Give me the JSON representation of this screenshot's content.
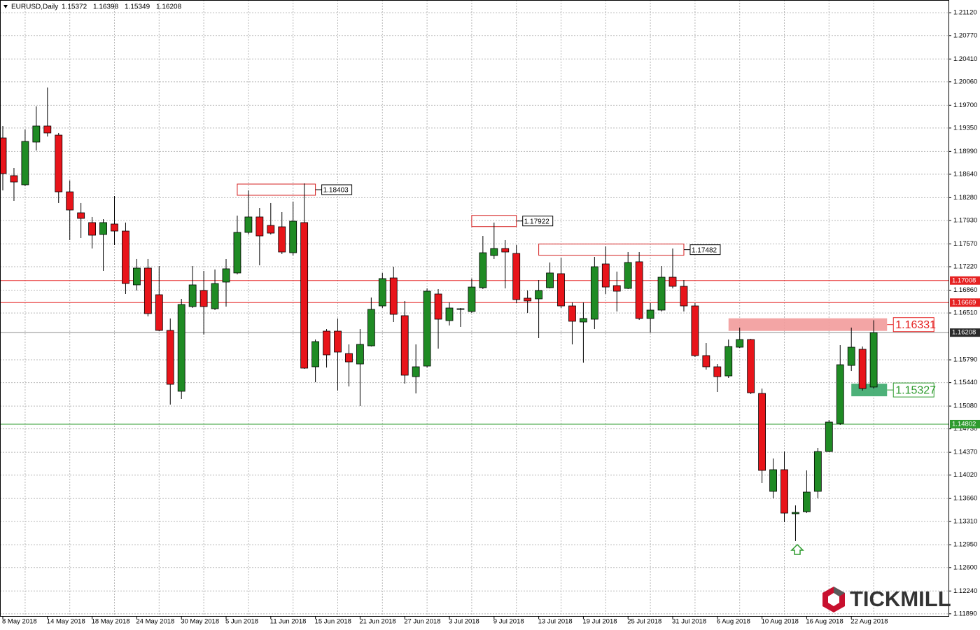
{
  "chart_data": {
    "type": "candlestick",
    "title": "EURUSD,Daily",
    "categories": [
      "8 May 2018",
      null,
      null,
      null,
      "14 May 2018",
      null,
      null,
      null,
      "18 May 2018",
      null,
      null,
      null,
      "24 May 2018",
      null,
      null,
      null,
      "30 May 2018",
      null,
      null,
      null,
      "5 Jun 2018",
      null,
      null,
      null,
      "11 Jun 2018",
      null,
      null,
      null,
      "15 Jun 2018",
      null,
      null,
      null,
      "21 Jun 2018",
      null,
      null,
      null,
      "27 Jun 2018",
      null,
      null,
      null,
      "3 Jul 2018",
      null,
      null,
      null,
      "9 Jul 2018",
      null,
      null,
      null,
      "13 Jul 2018",
      null,
      null,
      null,
      "19 Jul 2018",
      null,
      null,
      null,
      "25 Jul 2018",
      null,
      null,
      null,
      "31 Jul 2018",
      null,
      null,
      null,
      "6 Aug 2018",
      null,
      null,
      null,
      "10 Aug 2018",
      null,
      null,
      null,
      "16 Aug 2018",
      null,
      null,
      null,
      "22 Aug 2018",
      null,
      null
    ],
    "open": [
      1.19198,
      1.18618,
      1.18478,
      1.19134,
      1.19381,
      1.19241,
      1.1837,
      1.18048,
      1.17898,
      1.17715,
      1.17876,
      1.17768,
      1.16941,
      1.17199,
      1.1679,
      1.16242,
      1.15307,
      1.16608,
      1.16855,
      1.16575,
      1.16984,
      1.17124,
      1.17747,
      1.17984,
      1.17854,
      1.17833,
      1.17435,
      1.17898,
      1.15683,
      1.16231,
      1.16231,
      1.15887,
      1.15726,
      1.16005,
      1.16618,
      1.17048,
      1.16468,
      1.15532,
      1.15694,
      1.16801,
      1.16392,
      1.16564,
      1.16532,
      1.16898,
      1.17392,
      1.175,
      1.17424,
      1.16737,
      1.16726,
      1.16898,
      1.17113,
      1.16618,
      1.16371,
      1.16414,
      1.17263,
      1.1693,
      1.16887,
      1.17296,
      1.16425,
      1.16554,
      1.17059,
      1.16919,
      1.16618,
      1.15855,
      1.15683,
      1.15543,
      1.15984,
      1.16102,
      1.15274,
      1.1377,
      1.14103,
      1.13426,
      1.13458,
      1.1377,
      1.14382,
      1.14812,
      1.15704,
      1.15952,
      1.15372
    ],
    "high": [
      1.19381,
      1.18736,
      1.19327,
      1.19682,
      1.19972,
      1.19274,
      1.18543,
      1.18199,
      1.17984,
      1.17951,
      1.18306,
      1.17898,
      1.17339,
      1.17339,
      1.17231,
      1.16425,
      1.16726,
      1.17231,
      1.17156,
      1.17177,
      1.17339,
      1.18005,
      1.18392,
      1.18123,
      1.18199,
      1.18059,
      1.1822,
      1.185,
      1.16102,
      1.16263,
      1.16425,
      1.16027,
      1.16263,
      1.16747,
      1.17124,
      1.1722,
      1.16694,
      1.16027,
      1.16887,
      1.16876,
      1.16672,
      1.16586,
      1.17038,
      1.17693,
      1.17898,
      1.17629,
      1.17553,
      1.16855,
      1.17016,
      1.17285,
      1.1736,
      1.16672,
      1.16672,
      1.17371,
      1.17532,
      1.17145,
      1.17446,
      1.17446,
      1.16661,
      1.17231,
      1.175,
      1.17016,
      1.16661,
      1.16048,
      1.15726,
      1.16102,
      1.16285,
      1.16113,
      1.15349,
      1.14275,
      1.14382,
      1.13555,
      1.14092,
      1.14436,
      1.14866,
      1.16016,
      1.16285,
      1.15995,
      1.16398
    ],
    "low": [
      1.18392,
      1.18231,
      1.18456,
      1.19005,
      1.1922,
      1.18199,
      1.17629,
      1.17661,
      1.175,
      1.17156,
      1.17553,
      1.16801,
      1.16855,
      1.16457,
      1.16231,
      1.15103,
      1.15189,
      1.16586,
      1.16178,
      1.16554,
      1.16608,
      1.17102,
      1.17715,
      1.17242,
      1.17715,
      1.17414,
      1.17392,
      1.15651,
      1.15446,
      1.15672,
      1.15317,
      1.15381,
      1.15081,
      1.15995,
      1.16586,
      1.16371,
      1.15425,
      1.15274,
      1.15672,
      1.15962,
      1.16317,
      1.16296,
      1.16511,
      1.16876,
      1.17339,
      1.16887,
      1.16661,
      1.16511,
      1.16124,
      1.16887,
      1.16586,
      1.16027,
      1.15747,
      1.16263,
      1.16801,
      1.16532,
      1.16876,
      1.16403,
      1.16209,
      1.16532,
      1.16887,
      1.16532,
      1.15833,
      1.1564,
      1.15296,
      1.15511,
      1.15973,
      1.15264,
      1.13899,
      1.13662,
      1.13297,
      1.13007,
      1.13436,
      1.13662,
      1.14372,
      1.14791,
      1.15618,
      1.15317,
      1.15349
    ],
    "close": [
      1.1865,
      1.18521,
      1.19144,
      1.19381,
      1.19274,
      1.1837,
      1.18091,
      1.17962,
      1.17704,
      1.17898,
      1.17768,
      1.16962,
      1.17199,
      1.165,
      1.16242,
      1.15414,
      1.1664,
      1.16941,
      1.16608,
      1.16962,
      1.17188,
      1.17747,
      1.17984,
      1.17693,
      1.17736,
      1.17446,
      1.17919,
      1.15662,
      1.1607,
      1.15866,
      1.15909,
      1.15758,
      1.16027,
      1.16565,
      1.17038,
      1.16489,
      1.15554,
      1.15683,
      1.16844,
      1.16414,
      1.16586,
      1.16575,
      1.16908,
      1.17435,
      1.175,
      1.17446,
      1.16715,
      1.16694,
      1.16855,
      1.17124,
      1.16618,
      1.16382,
      1.16425,
      1.1722,
      1.16908,
      1.16844,
      1.17285,
      1.16425,
      1.16554,
      1.17059,
      1.16919,
      1.16618,
      1.15855,
      1.15683,
      1.15532,
      1.15995,
      1.16102,
      1.15285,
      1.14092,
      1.14103,
      1.13436,
      1.13447,
      1.13759,
      1.14382,
      1.14834,
      1.15715,
      1.15984,
      1.15349,
      1.16208
    ],
    "up_color": "#1f8b24",
    "down_color": "#e8141a",
    "ylim": [
      1.11856,
      1.21316
    ],
    "yticks": [
      {
        "value": 1.2112,
        "label": "1.21120"
      },
      {
        "value": 1.2077,
        "label": "1.20770"
      },
      {
        "value": 1.2041,
        "label": "1.20410"
      },
      {
        "value": 1.2006,
        "label": "1.20060"
      },
      {
        "value": 1.197,
        "label": "1.19700"
      },
      {
        "value": 1.1935,
        "label": "1.19350"
      },
      {
        "value": 1.1899,
        "label": "1.18990"
      },
      {
        "value": 1.1864,
        "label": "1.18640"
      },
      {
        "value": 1.1828,
        "label": "1.18280"
      },
      {
        "value": 1.1793,
        "label": "1.17930"
      },
      {
        "value": 1.1757,
        "label": "1.17570"
      },
      {
        "value": 1.1722,
        "label": "1.17220"
      },
      {
        "value": 1.1686,
        "label": "1.16860"
      },
      {
        "value": 1.1651,
        "label": "1.16510"
      },
      {
        "value": 1.1579,
        "label": "1.15790"
      },
      {
        "value": 1.1544,
        "label": "1.15440"
      },
      {
        "value": 1.1508,
        "label": "1.15080"
      },
      {
        "value": 1.1473,
        "label": "1.14730"
      },
      {
        "value": 1.1437,
        "label": "1.14370"
      },
      {
        "value": 1.1402,
        "label": "1.14020"
      },
      {
        "value": 1.1366,
        "label": "1.13660"
      },
      {
        "value": 1.1331,
        "label": "1.13310"
      },
      {
        "value": 1.1295,
        "label": "1.12950"
      },
      {
        "value": 1.126,
        "label": "1.12600"
      },
      {
        "value": 1.1224,
        "label": "1.12240"
      },
      {
        "value": 1.1189,
        "label": "1.11890"
      }
    ],
    "grid": true,
    "levels": [
      {
        "value": 1.17008,
        "color": "#e52222"
      },
      {
        "value": 1.16669,
        "color": "#e52222"
      },
      {
        "value": 1.14802,
        "color": "#2e9b2e"
      }
    ],
    "zones": [
      {
        "value": 1.18403,
        "style": "outline",
        "color": "#d42020"
      },
      {
        "value": 1.17922,
        "style": "outline",
        "color": "#d42020"
      },
      {
        "value": 1.17482,
        "style": "outline",
        "color": "#d42020"
      },
      {
        "value": 1.16331,
        "style": "filled",
        "color": "#f29b9b",
        "text_color": "#e52222"
      },
      {
        "value": 1.15327,
        "style": "filled",
        "color": "#3aa86a",
        "text_color": "#2e9b2e"
      }
    ]
  },
  "logo": "TICKMILL"
}
